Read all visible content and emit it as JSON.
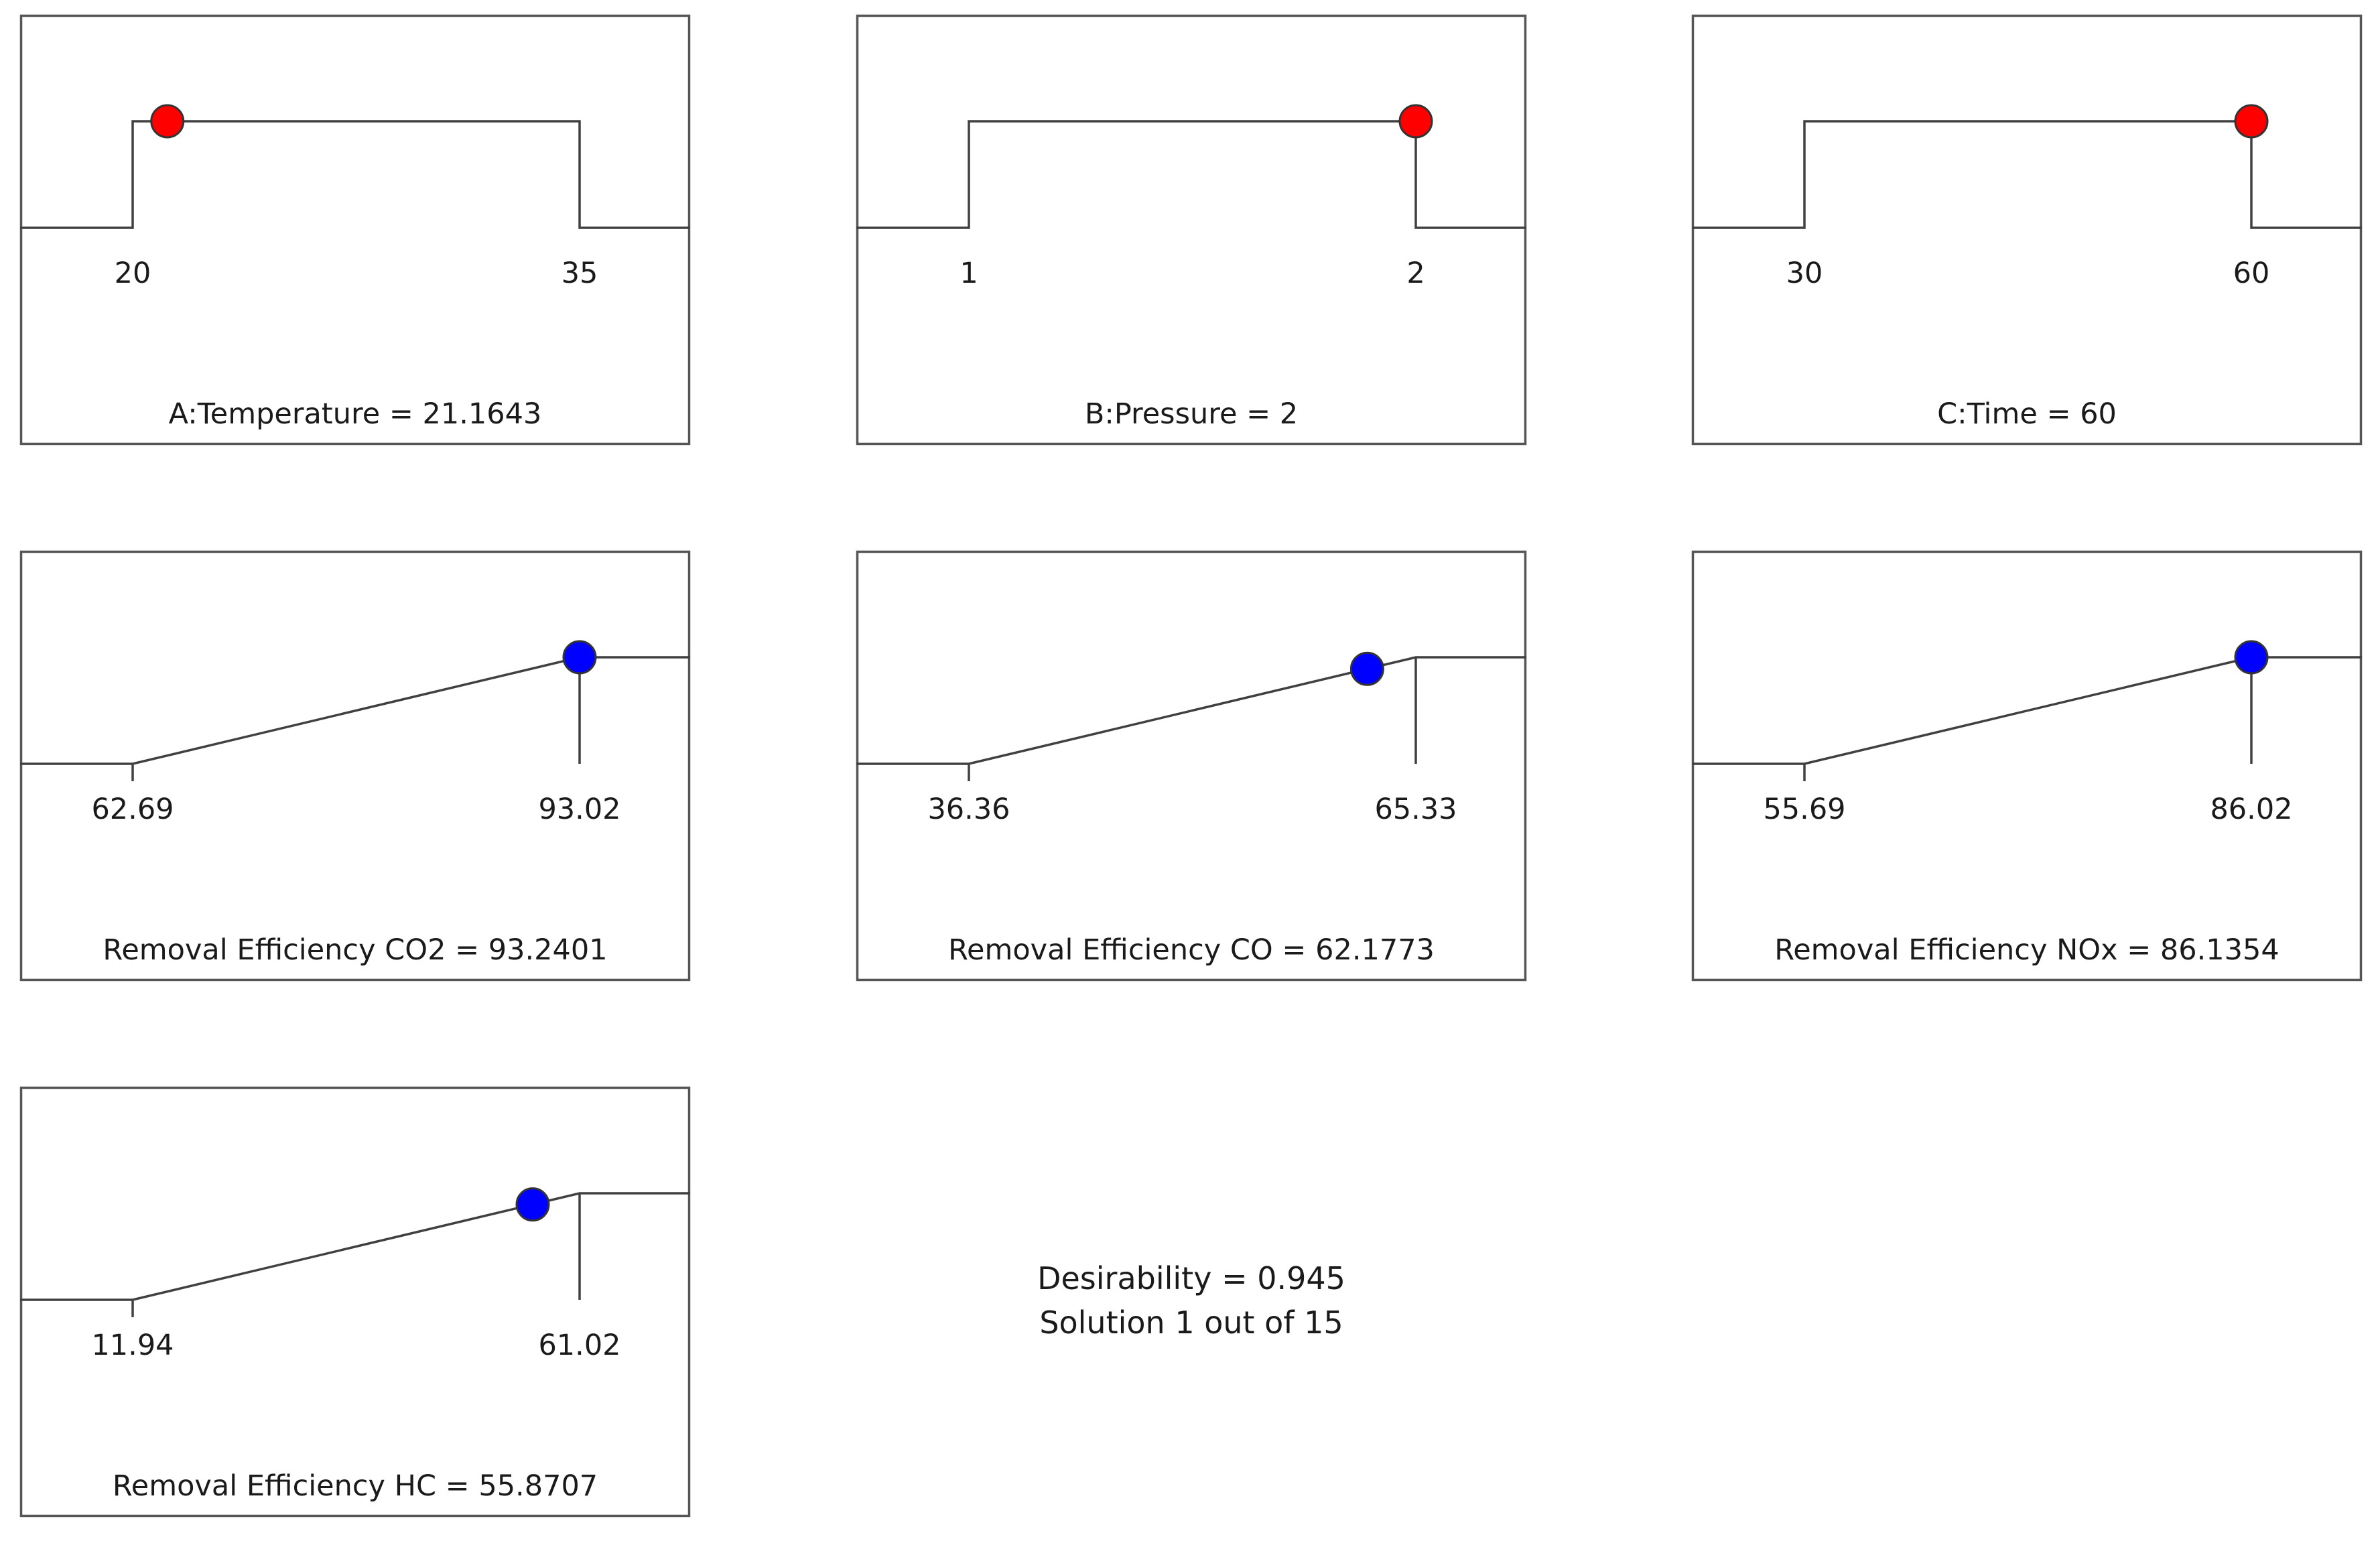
{
  "chart_data": [
    {
      "type": "line",
      "kind": "factor",
      "title": "A:Temperature = 21.1643",
      "low": 20,
      "high": 35,
      "value": 21.1643,
      "tick_labels": [
        "20",
        "35"
      ],
      "shape": "range",
      "marker_color": "#ff0000"
    },
    {
      "type": "line",
      "kind": "factor",
      "title": "B:Pressure = 2",
      "low": 1,
      "high": 2,
      "value": 2,
      "tick_labels": [
        "1",
        "2"
      ],
      "shape": "range",
      "marker_color": "#ff0000"
    },
    {
      "type": "line",
      "kind": "factor",
      "title": "C:Time = 60",
      "low": 30,
      "high": 60,
      "value": 60,
      "tick_labels": [
        "30",
        "60"
      ],
      "shape": "range",
      "marker_color": "#ff0000"
    },
    {
      "type": "line",
      "kind": "response",
      "title": "Removal Efficiency CO2 = 93.2401",
      "low": 62.69,
      "high": 93.02,
      "value": 93.2401,
      "tick_labels": [
        "62.69",
        "93.02"
      ],
      "shape": "maximize",
      "marker_color": "#0000ff"
    },
    {
      "type": "line",
      "kind": "response",
      "title": "Removal Efficiency CO = 62.1773",
      "low": 36.36,
      "high": 65.33,
      "value": 62.1773,
      "tick_labels": [
        "36.36",
        "65.33"
      ],
      "shape": "maximize",
      "marker_color": "#0000ff"
    },
    {
      "type": "line",
      "kind": "response",
      "title": "Removal Efficiency NOx = 86.1354",
      "low": 55.69,
      "high": 86.02,
      "value": 86.1354,
      "tick_labels": [
        "55.69",
        "86.02"
      ],
      "shape": "maximize",
      "marker_color": "#0000ff"
    },
    {
      "type": "line",
      "kind": "response",
      "title": "Removal Efficiency HC = 55.8707",
      "low": 11.94,
      "high": 61.02,
      "value": 55.8707,
      "tick_labels": [
        "11.94",
        "61.02"
      ],
      "shape": "maximize",
      "marker_color": "#0000ff"
    }
  ],
  "summary": {
    "desirability": "Desirability = 0.945",
    "solution": "Solution 1 out of 15"
  }
}
